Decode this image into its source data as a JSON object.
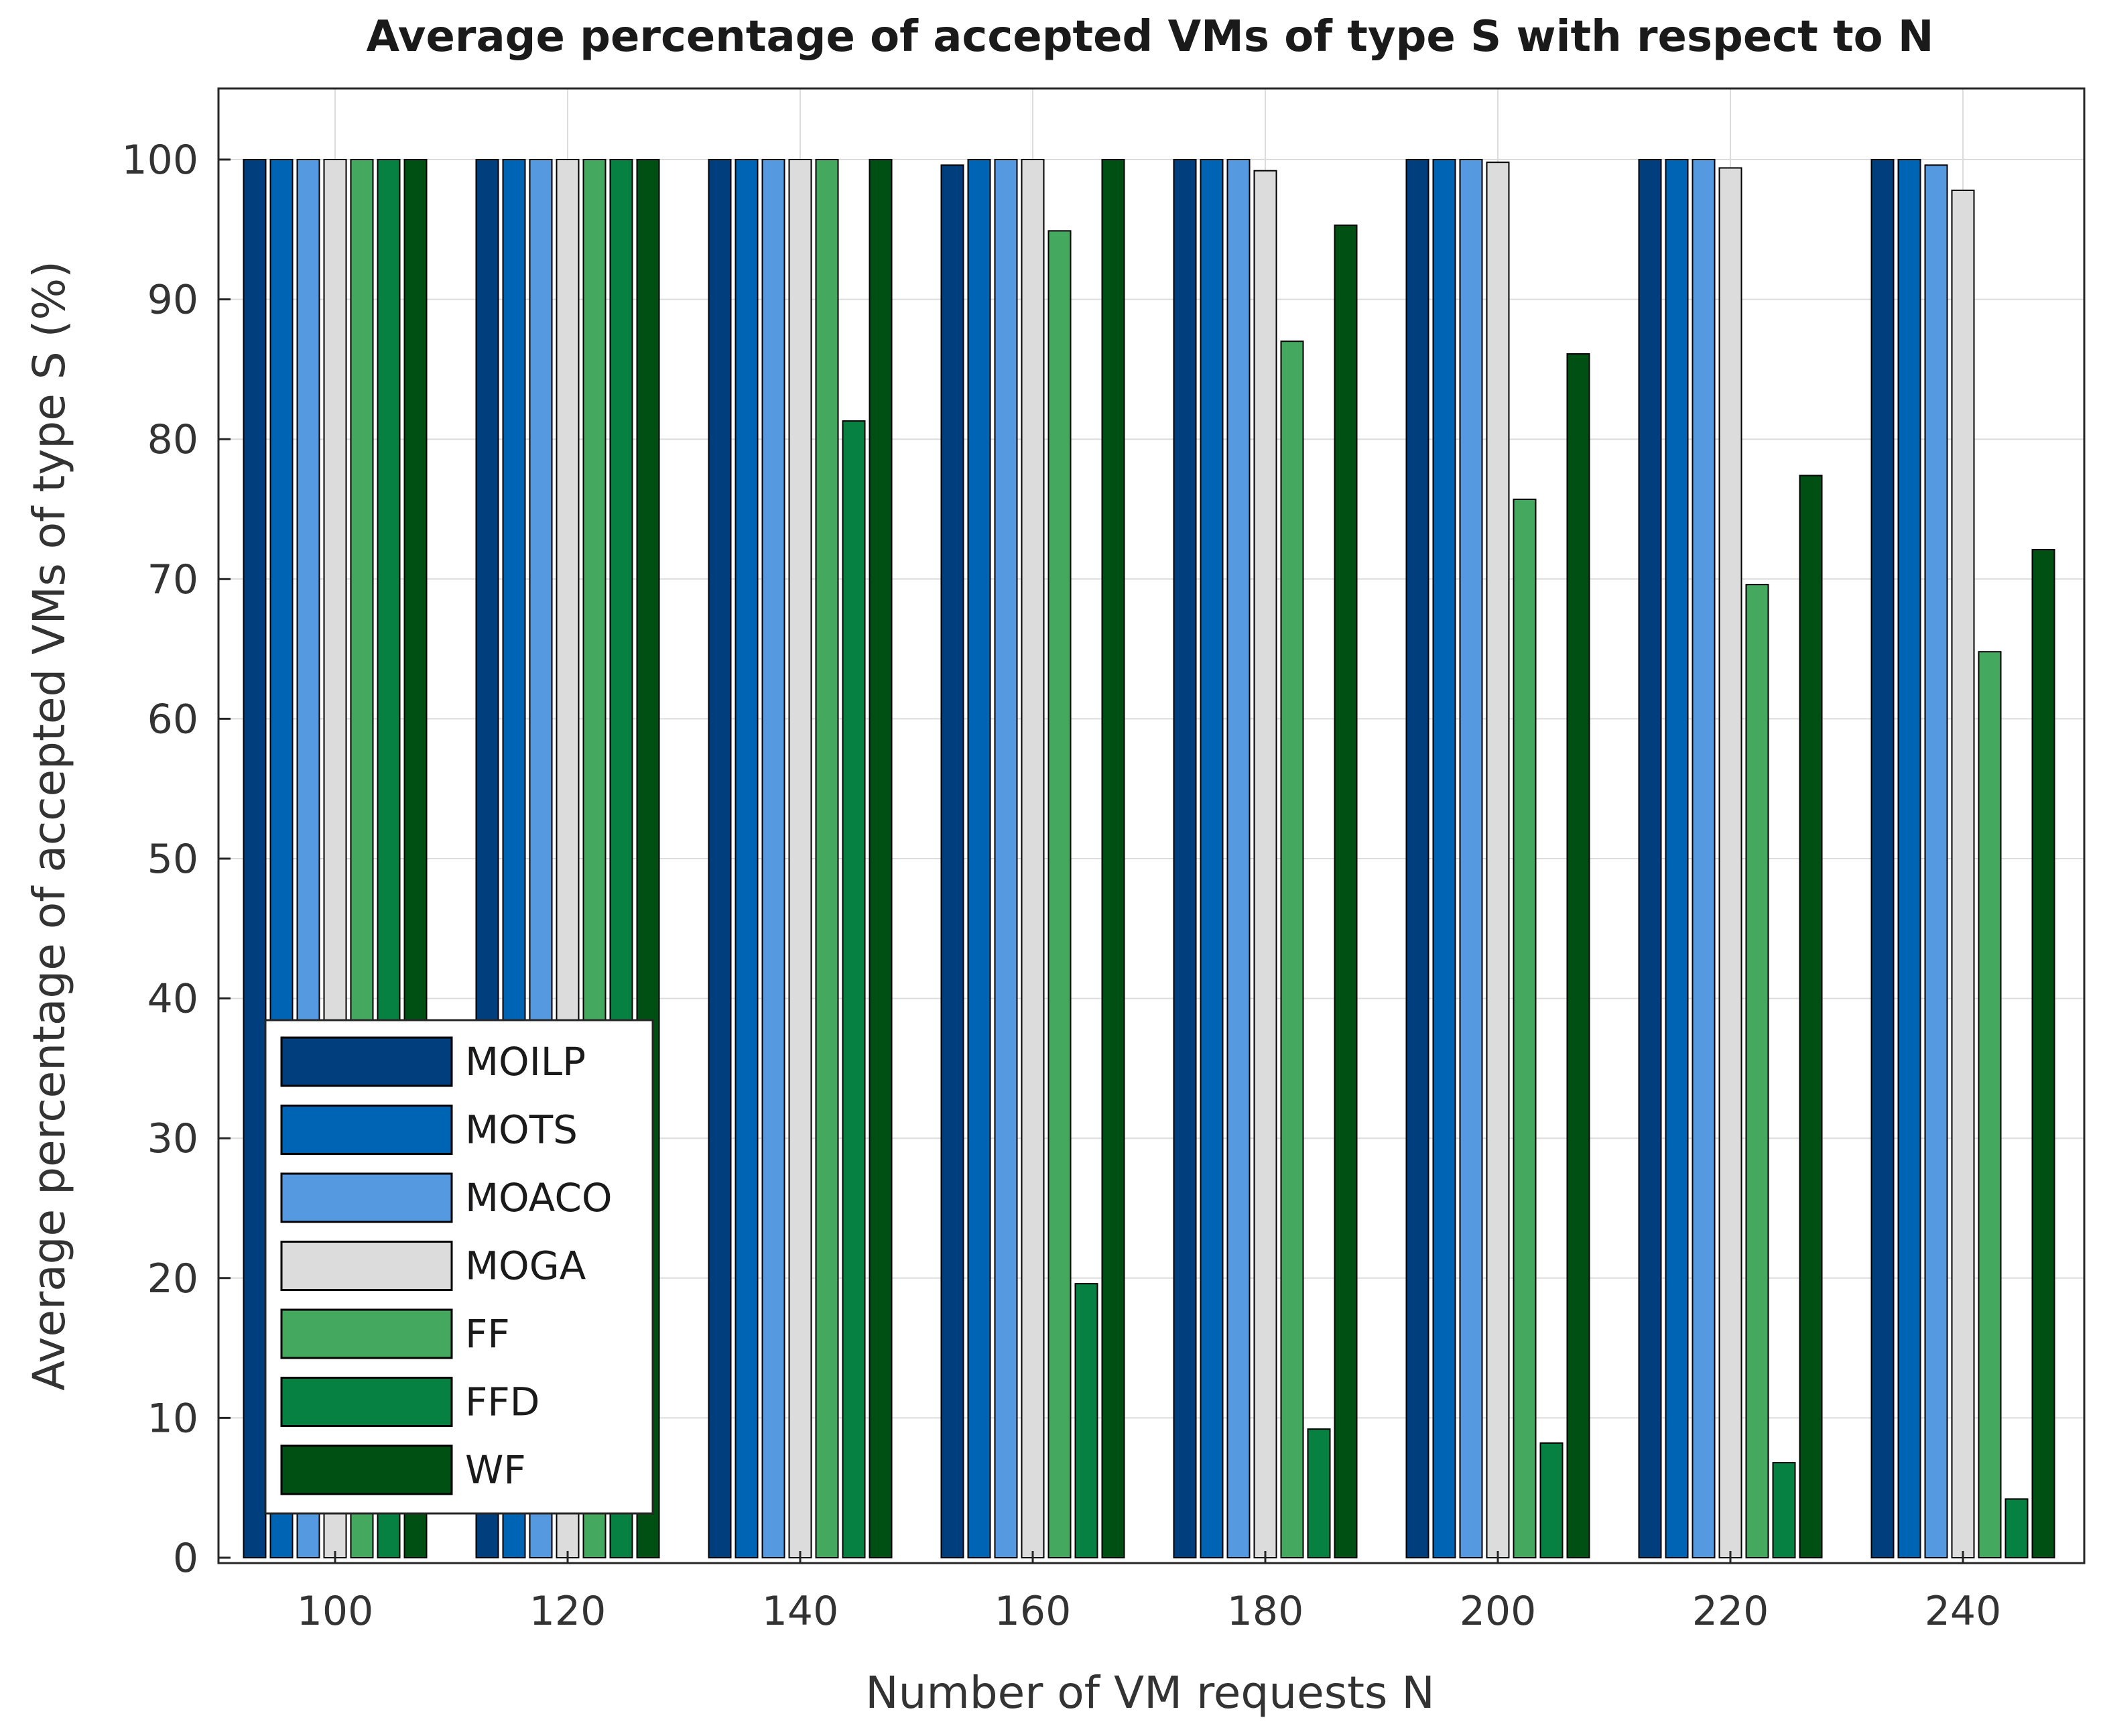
{
  "chart_data": {
    "type": "bar",
    "title": "Average percentage of accepted VMs of type S with respect to N",
    "xlabel": "Number of VM requests N",
    "ylabel": "Average percentage of accepted VMs of type S (%)",
    "ylim": [
      0,
      100
    ],
    "yticks": [
      "0",
      "10",
      "20",
      "30",
      "40",
      "50",
      "60",
      "70",
      "80",
      "90",
      "100"
    ],
    "categories": [
      "100",
      "120",
      "140",
      "160",
      "180",
      "200",
      "220",
      "240"
    ],
    "grid": true,
    "legend_position": "bottom-left",
    "series": [
      {
        "name": "MOILP",
        "color": "#003e7e",
        "values": [
          100,
          100,
          100,
          99.6,
          100,
          100,
          100,
          100
        ]
      },
      {
        "name": "MOTS",
        "color": "#0064b4",
        "values": [
          100,
          100,
          100,
          100,
          100,
          100,
          100,
          100
        ]
      },
      {
        "name": "MOACO",
        "color": "#5599e0",
        "values": [
          100,
          100,
          100,
          100,
          100,
          100,
          100,
          99.6
        ]
      },
      {
        "name": "MOGA",
        "color": "#dcdcdc",
        "values": [
          100,
          100,
          100,
          100,
          99.2,
          99.8,
          99.4,
          97.8
        ]
      },
      {
        "name": "FF",
        "color": "#44a95e",
        "values": [
          100,
          100,
          100,
          94.9,
          87.0,
          75.7,
          69.6,
          64.8
        ]
      },
      {
        "name": "FFD",
        "color": "#078142",
        "values": [
          100,
          100,
          81.3,
          19.6,
          9.2,
          8.2,
          6.8,
          4.2
        ]
      },
      {
        "name": "WF",
        "color": "#004f13",
        "values": [
          100,
          100,
          100,
          100,
          95.3,
          86.1,
          77.4,
          72.1
        ]
      }
    ]
  }
}
